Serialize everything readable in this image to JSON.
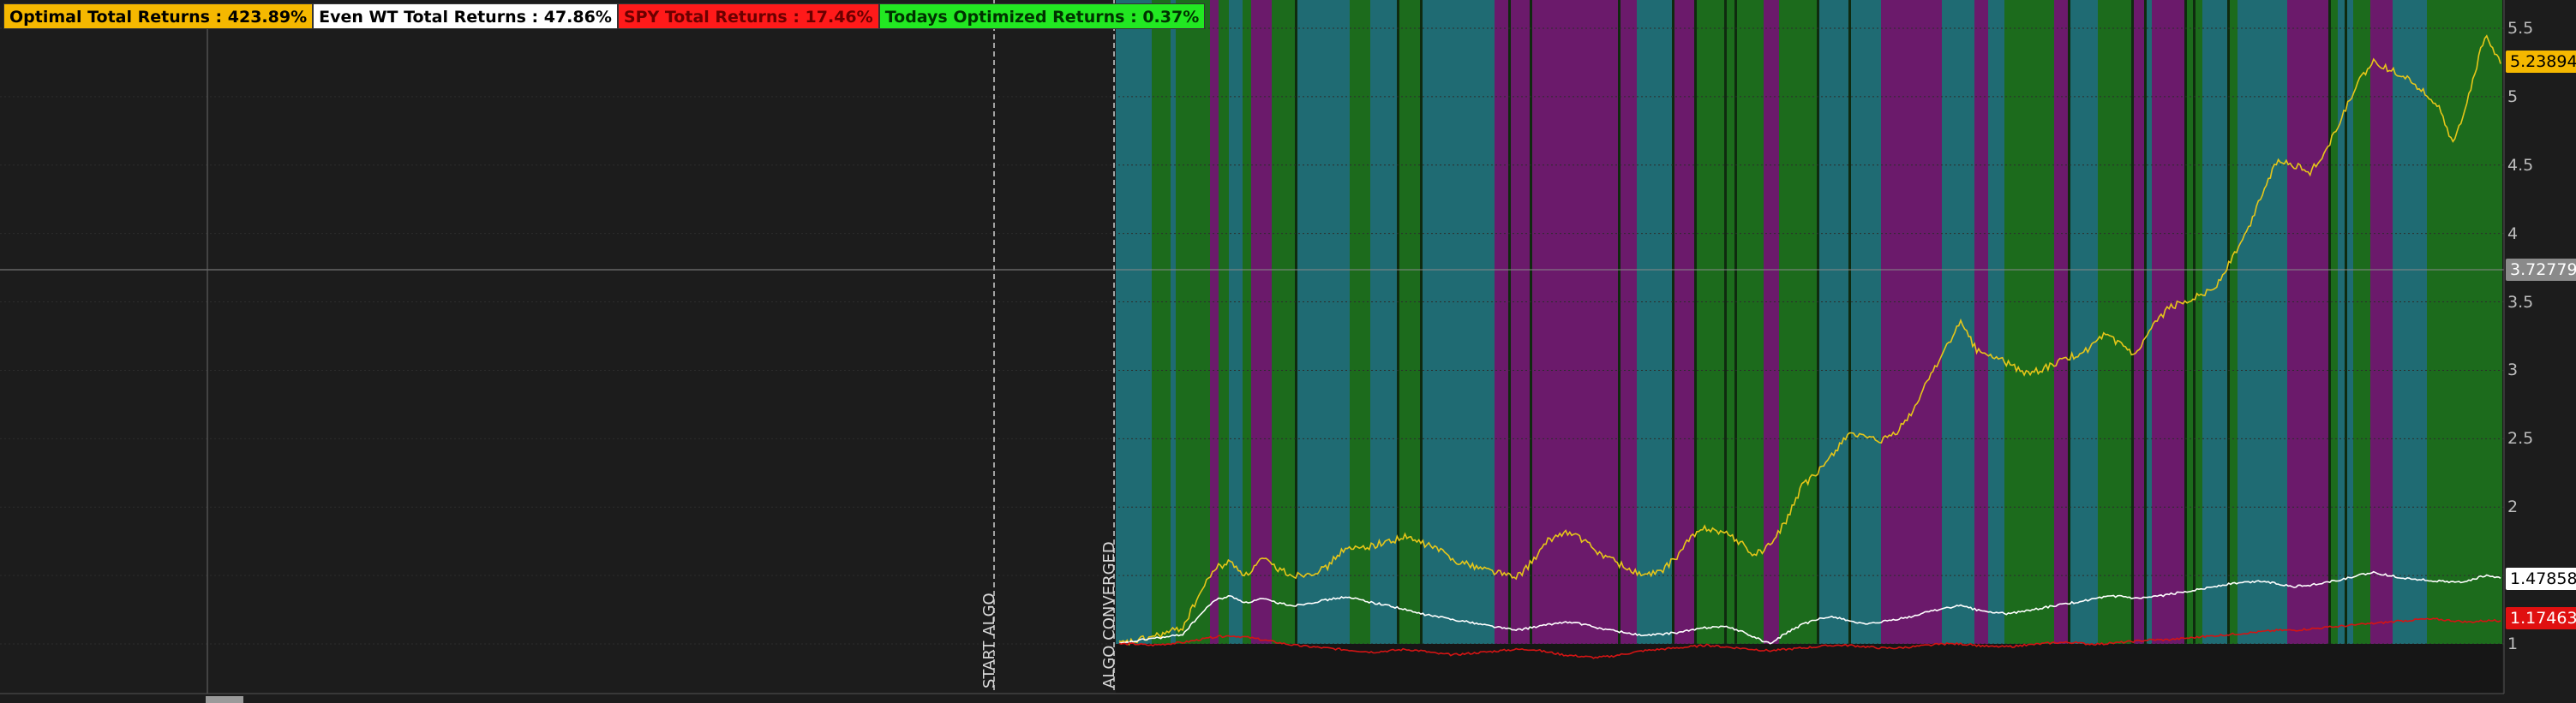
{
  "header_badges": [
    {
      "text": "Optimal Total Returns : 423.89%",
      "bg": "#f5b800",
      "fg": "#000000"
    },
    {
      "text": "Even WT Total Returns : 47.86%",
      "bg": "#ffffff",
      "fg": "#000000"
    },
    {
      "text": "SPY Total Returns : 17.46%",
      "bg": "#ff1a1a",
      "fg": "#6b0000"
    },
    {
      "text": "Todays Optimized Returns : 0.37%",
      "bg": "#22e822",
      "fg": "#003300"
    }
  ],
  "markers": {
    "start_algo": "START ALGO",
    "algo_converged": "ALGO CONVERGED"
  },
  "crosshair_value": "3.72779",
  "last_values": {
    "optimal": "5.23894",
    "even_wt": "1.47858",
    "spy": "1.17463"
  },
  "colors": {
    "background": "#1c1c1c",
    "regime_teal": "#1f6b73",
    "regime_green": "#1c6b1c",
    "regime_purple": "#6b1a6b",
    "optimal_line": "#e6c619",
    "even_wt_line": "#ffffff",
    "spy_line": "#d41414",
    "crosshair": "#bdbdbd"
  },
  "chart_data": {
    "type": "line",
    "y_ticks": [
      1,
      1.5,
      2,
      2.5,
      3,
      3.5,
      4,
      4.5,
      5,
      5.5
    ],
    "y_tick_labels": [
      "1",
      "1.5",
      "2",
      "2.5",
      "3",
      "3.5",
      "4",
      "4.5",
      "5",
      "5.5"
    ],
    "ylim": [
      0.9,
      5.75
    ],
    "grid": true,
    "regime_background": {
      "categories": [
        "teal",
        "green",
        "purple"
      ],
      "sequence": "Bands of regime colors behind the series after the algorithm converged"
    },
    "series": [
      {
        "key": "optimal",
        "values": [
          1.0,
          1.02,
          1.05,
          1.08,
          1.12,
          1.35,
          1.55,
          1.6,
          1.5,
          1.62,
          1.55,
          1.5,
          1.52,
          1.55,
          1.68,
          1.7,
          1.72,
          1.75,
          1.78,
          1.74,
          1.7,
          1.62,
          1.58,
          1.55,
          1.52,
          1.48,
          1.6,
          1.75,
          1.82,
          1.78,
          1.68,
          1.62,
          1.55,
          1.5,
          1.52,
          1.62,
          1.78,
          1.85,
          1.82,
          1.75,
          1.65,
          1.72,
          1.9,
          2.15,
          2.25,
          2.4,
          2.55,
          2.5,
          2.48,
          2.55,
          2.7,
          2.95,
          3.15,
          3.35,
          3.15,
          3.1,
          3.05,
          2.98,
          3.0,
          3.05,
          3.1,
          3.15,
          3.25,
          3.2,
          3.1,
          3.3,
          3.45,
          3.5,
          3.55,
          3.6,
          3.8,
          4.0,
          4.3,
          4.55,
          4.5,
          4.45,
          4.6,
          4.85,
          5.1,
          5.25,
          5.2,
          5.15,
          5.05,
          4.95,
          4.65,
          5.0,
          5.45,
          5.24
        ]
      },
      {
        "key": "even_wt",
        "values": [
          1.0,
          1.02,
          1.04,
          1.05,
          1.07,
          1.2,
          1.32,
          1.35,
          1.3,
          1.33,
          1.3,
          1.28,
          1.3,
          1.32,
          1.34,
          1.33,
          1.3,
          1.28,
          1.25,
          1.22,
          1.2,
          1.18,
          1.16,
          1.14,
          1.12,
          1.1,
          1.12,
          1.14,
          1.16,
          1.15,
          1.12,
          1.1,
          1.08,
          1.06,
          1.07,
          1.08,
          1.1,
          1.12,
          1.13,
          1.1,
          1.05,
          1.0,
          1.08,
          1.14,
          1.18,
          1.2,
          1.17,
          1.14,
          1.16,
          1.18,
          1.2,
          1.24,
          1.26,
          1.28,
          1.25,
          1.23,
          1.22,
          1.24,
          1.26,
          1.28,
          1.3,
          1.32,
          1.34,
          1.35,
          1.33,
          1.34,
          1.36,
          1.38,
          1.4,
          1.42,
          1.44,
          1.45,
          1.46,
          1.44,
          1.42,
          1.43,
          1.45,
          1.47,
          1.5,
          1.52,
          1.5,
          1.48,
          1.47,
          1.46,
          1.45,
          1.46,
          1.5,
          1.48
        ]
      },
      {
        "key": "spy",
        "values": [
          1.0,
          1.0,
          0.99,
          1.0,
          1.01,
          1.03,
          1.05,
          1.06,
          1.05,
          1.03,
          1.01,
          0.99,
          0.98,
          0.97,
          0.96,
          0.95,
          0.94,
          0.95,
          0.96,
          0.95,
          0.93,
          0.92,
          0.93,
          0.94,
          0.95,
          0.96,
          0.96,
          0.94,
          0.92,
          0.91,
          0.9,
          0.91,
          0.93,
          0.95,
          0.96,
          0.97,
          0.98,
          0.99,
          0.98,
          0.97,
          0.96,
          0.95,
          0.96,
          0.97,
          0.98,
          0.99,
          0.99,
          0.98,
          0.97,
          0.97,
          0.98,
          0.99,
          1.0,
          1.0,
          0.99,
          0.98,
          0.98,
          0.99,
          1.0,
          1.01,
          1.01,
          1.0,
          1.0,
          1.01,
          1.02,
          1.03,
          1.03,
          1.04,
          1.05,
          1.06,
          1.07,
          1.08,
          1.09,
          1.1,
          1.1,
          1.11,
          1.12,
          1.13,
          1.14,
          1.15,
          1.16,
          1.17,
          1.18,
          1.18,
          1.17,
          1.16,
          1.17,
          1.17
        ]
      }
    ]
  }
}
